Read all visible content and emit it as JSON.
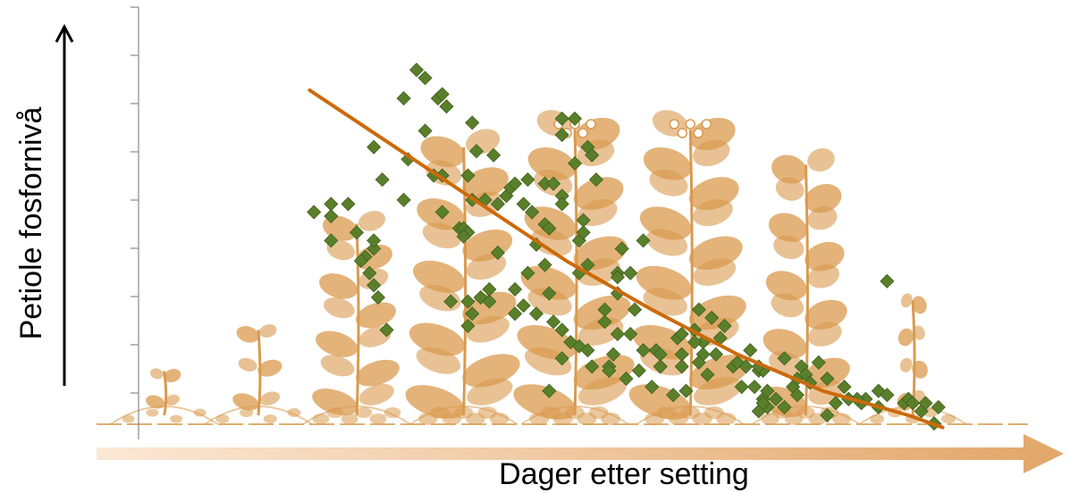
{
  "chart_data": {
    "type": "scatter",
    "xlabel": "Dager etter setting",
    "ylabel": "Petiole fosfornivå",
    "xlim": [
      0,
      100
    ],
    "ylim": [
      0,
      100
    ],
    "grid": false,
    "colors": {
      "points": "#5a7f2b",
      "points_edge": "#3f5e1c",
      "trend": "#cc6a0a",
      "plants": "#d99a4e",
      "x_arrow": "#e7b27a",
      "axis": "#000000"
    },
    "series": [
      {
        "values": [
          [
            20.5,
            50
          ],
          [
            22.5,
            52
          ],
          [
            22.5,
            49
          ],
          [
            24.5,
            52
          ],
          [
            22.5,
            43
          ],
          [
            25.5,
            45
          ],
          [
            26.5,
            39
          ],
          [
            26,
            38
          ],
          [
            27.5,
            41
          ],
          [
            27.5,
            43
          ],
          [
            27,
            35
          ],
          [
            27.5,
            32
          ],
          [
            28,
            29
          ],
          [
            29,
            21
          ],
          [
            27.5,
            66
          ],
          [
            28.5,
            58
          ],
          [
            31,
            53
          ],
          [
            31.5,
            63
          ],
          [
            33.5,
            70
          ],
          [
            35.5,
            50
          ],
          [
            31,
            78
          ],
          [
            32.5,
            85
          ],
          [
            33.5,
            83
          ],
          [
            35,
            78
          ],
          [
            35.5,
            79
          ],
          [
            36,
            76
          ],
          [
            35.5,
            59
          ],
          [
            34.5,
            59
          ],
          [
            38.5,
            59
          ],
          [
            39,
            72
          ],
          [
            37.5,
            46
          ],
          [
            38,
            46
          ],
          [
            38.5,
            45
          ],
          [
            38,
            44
          ],
          [
            39,
            53
          ],
          [
            40.5,
            53
          ],
          [
            42,
            52
          ],
          [
            41.5,
            64
          ],
          [
            39.5,
            65
          ],
          [
            39,
            25
          ],
          [
            38.5,
            28
          ],
          [
            36.5,
            28
          ],
          [
            38.5,
            22
          ],
          [
            40,
            29
          ],
          [
            41,
            28
          ],
          [
            41,
            31
          ],
          [
            42,
            40
          ],
          [
            43,
            54
          ],
          [
            43.5,
            56
          ],
          [
            45,
            52
          ],
          [
            44,
            57
          ],
          [
            45.5,
            58
          ],
          [
            45.5,
            35
          ],
          [
            44,
            31
          ],
          [
            45,
            27
          ],
          [
            44,
            25
          ],
          [
            46.5,
            42
          ],
          [
            47.5,
            47
          ],
          [
            46,
            50
          ],
          [
            47.5,
            57
          ],
          [
            48.5,
            57
          ],
          [
            49.5,
            54
          ],
          [
            49.5,
            52
          ],
          [
            48,
            46
          ],
          [
            47.5,
            37
          ],
          [
            48,
            30
          ],
          [
            46.5,
            25
          ],
          [
            48.5,
            23
          ],
          [
            49.5,
            73
          ],
          [
            49.5,
            69
          ],
          [
            51,
            73
          ],
          [
            52.5,
            66
          ],
          [
            53,
            64
          ],
          [
            53.5,
            58
          ],
          [
            51,
            62
          ],
          [
            52,
            48
          ],
          [
            51.5,
            43
          ],
          [
            52,
            45
          ],
          [
            52.5,
            37
          ],
          [
            51.5,
            35
          ],
          [
            49.5,
            21
          ],
          [
            50.5,
            18
          ],
          [
            49.5,
            14
          ],
          [
            51.5,
            17
          ],
          [
            53,
            12
          ],
          [
            54.5,
            26
          ],
          [
            55.5,
            15
          ],
          [
            56,
            30
          ],
          [
            54.5,
            23
          ],
          [
            55,
            12
          ],
          [
            58,
            26
          ],
          [
            56,
            35
          ],
          [
            57.5,
            35
          ],
          [
            59,
            43
          ],
          [
            57.5,
            20
          ],
          [
            59,
            16
          ],
          [
            60.5,
            16
          ],
          [
            61,
            12
          ],
          [
            63,
            19
          ],
          [
            63.5,
            15
          ],
          [
            61,
            15
          ],
          [
            58.5,
            11
          ],
          [
            55,
            11
          ],
          [
            57,
            9
          ],
          [
            52.5,
            16
          ],
          [
            48,
            6
          ],
          [
            56.5,
            41
          ],
          [
            56,
            34
          ],
          [
            56,
            20
          ],
          [
            60,
            7
          ],
          [
            61,
            12
          ],
          [
            62.5,
            5
          ],
          [
            64,
            6
          ],
          [
            63.5,
            12
          ],
          [
            63.5,
            20
          ],
          [
            66,
            18
          ],
          [
            66,
            15
          ],
          [
            65.5,
            13
          ],
          [
            66.5,
            10
          ],
          [
            65,
            21
          ],
          [
            65,
            18
          ],
          [
            65.5,
            26
          ],
          [
            67,
            24
          ],
          [
            67.5,
            15
          ],
          [
            68,
            19
          ],
          [
            68.5,
            22
          ],
          [
            69.5,
            12
          ],
          [
            70,
            13
          ],
          [
            71,
            12
          ],
          [
            71.5,
            16
          ],
          [
            70.5,
            7
          ],
          [
            72.5,
            11
          ],
          [
            73,
            11
          ],
          [
            72.5,
            12
          ],
          [
            73,
            4
          ],
          [
            73.5,
            6
          ],
          [
            74.5,
            4
          ],
          [
            75.5,
            14
          ],
          [
            72,
            7
          ],
          [
            72.5,
            1
          ],
          [
            73.5,
            2
          ],
          [
            73,
            3
          ],
          [
            75.5,
            2
          ],
          [
            76.5,
            7
          ],
          [
            77,
            9
          ],
          [
            77.5,
            12
          ],
          [
            78,
            10
          ],
          [
            78.5,
            8
          ],
          [
            77,
            5
          ],
          [
            79.5,
            13
          ],
          [
            80.5,
            9
          ],
          [
            80.5,
            0
          ],
          [
            82.5,
            7
          ],
          [
            83,
            4
          ],
          [
            81.5,
            3
          ],
          [
            84.5,
            3
          ],
          [
            85,
            4
          ],
          [
            84,
            4
          ],
          [
            86.5,
            2
          ],
          [
            86.5,
            6
          ],
          [
            87.5,
            5
          ],
          [
            89.5,
            3
          ],
          [
            90,
            4
          ],
          [
            90.5,
            3
          ],
          [
            91.5,
            1
          ],
          [
            92,
            3
          ],
          [
            93,
            -2
          ],
          [
            93.5,
            2
          ],
          [
            87.5,
            33
          ],
          [
            83,
            4
          ]
        ]
      }
    ],
    "trendline": [
      [
        20,
        80
      ],
      [
        30,
        66
      ],
      [
        40,
        52
      ],
      [
        50,
        38
      ],
      [
        60,
        26
      ],
      [
        70,
        15
      ],
      [
        80,
        6
      ],
      [
        90,
        0
      ],
      [
        94,
        -3
      ]
    ],
    "plants": [
      {
        "stage": "sprout",
        "x": 3,
        "scale": 0.18
      },
      {
        "stage": "seedling",
        "x": 14,
        "scale": 0.32
      },
      {
        "stage": "vegetative",
        "x": 25.5,
        "scale": 0.68
      },
      {
        "stage": "vegetative",
        "x": 38,
        "scale": 0.94
      },
      {
        "stage": "flowering",
        "x": 51,
        "scale": 1.0
      },
      {
        "stage": "flowering",
        "x": 64.5,
        "scale": 1.0
      },
      {
        "stage": "senescence",
        "x": 78,
        "scale": 0.88
      },
      {
        "stage": "dieback",
        "x": 90.5,
        "scale": 0.42
      }
    ]
  }
}
